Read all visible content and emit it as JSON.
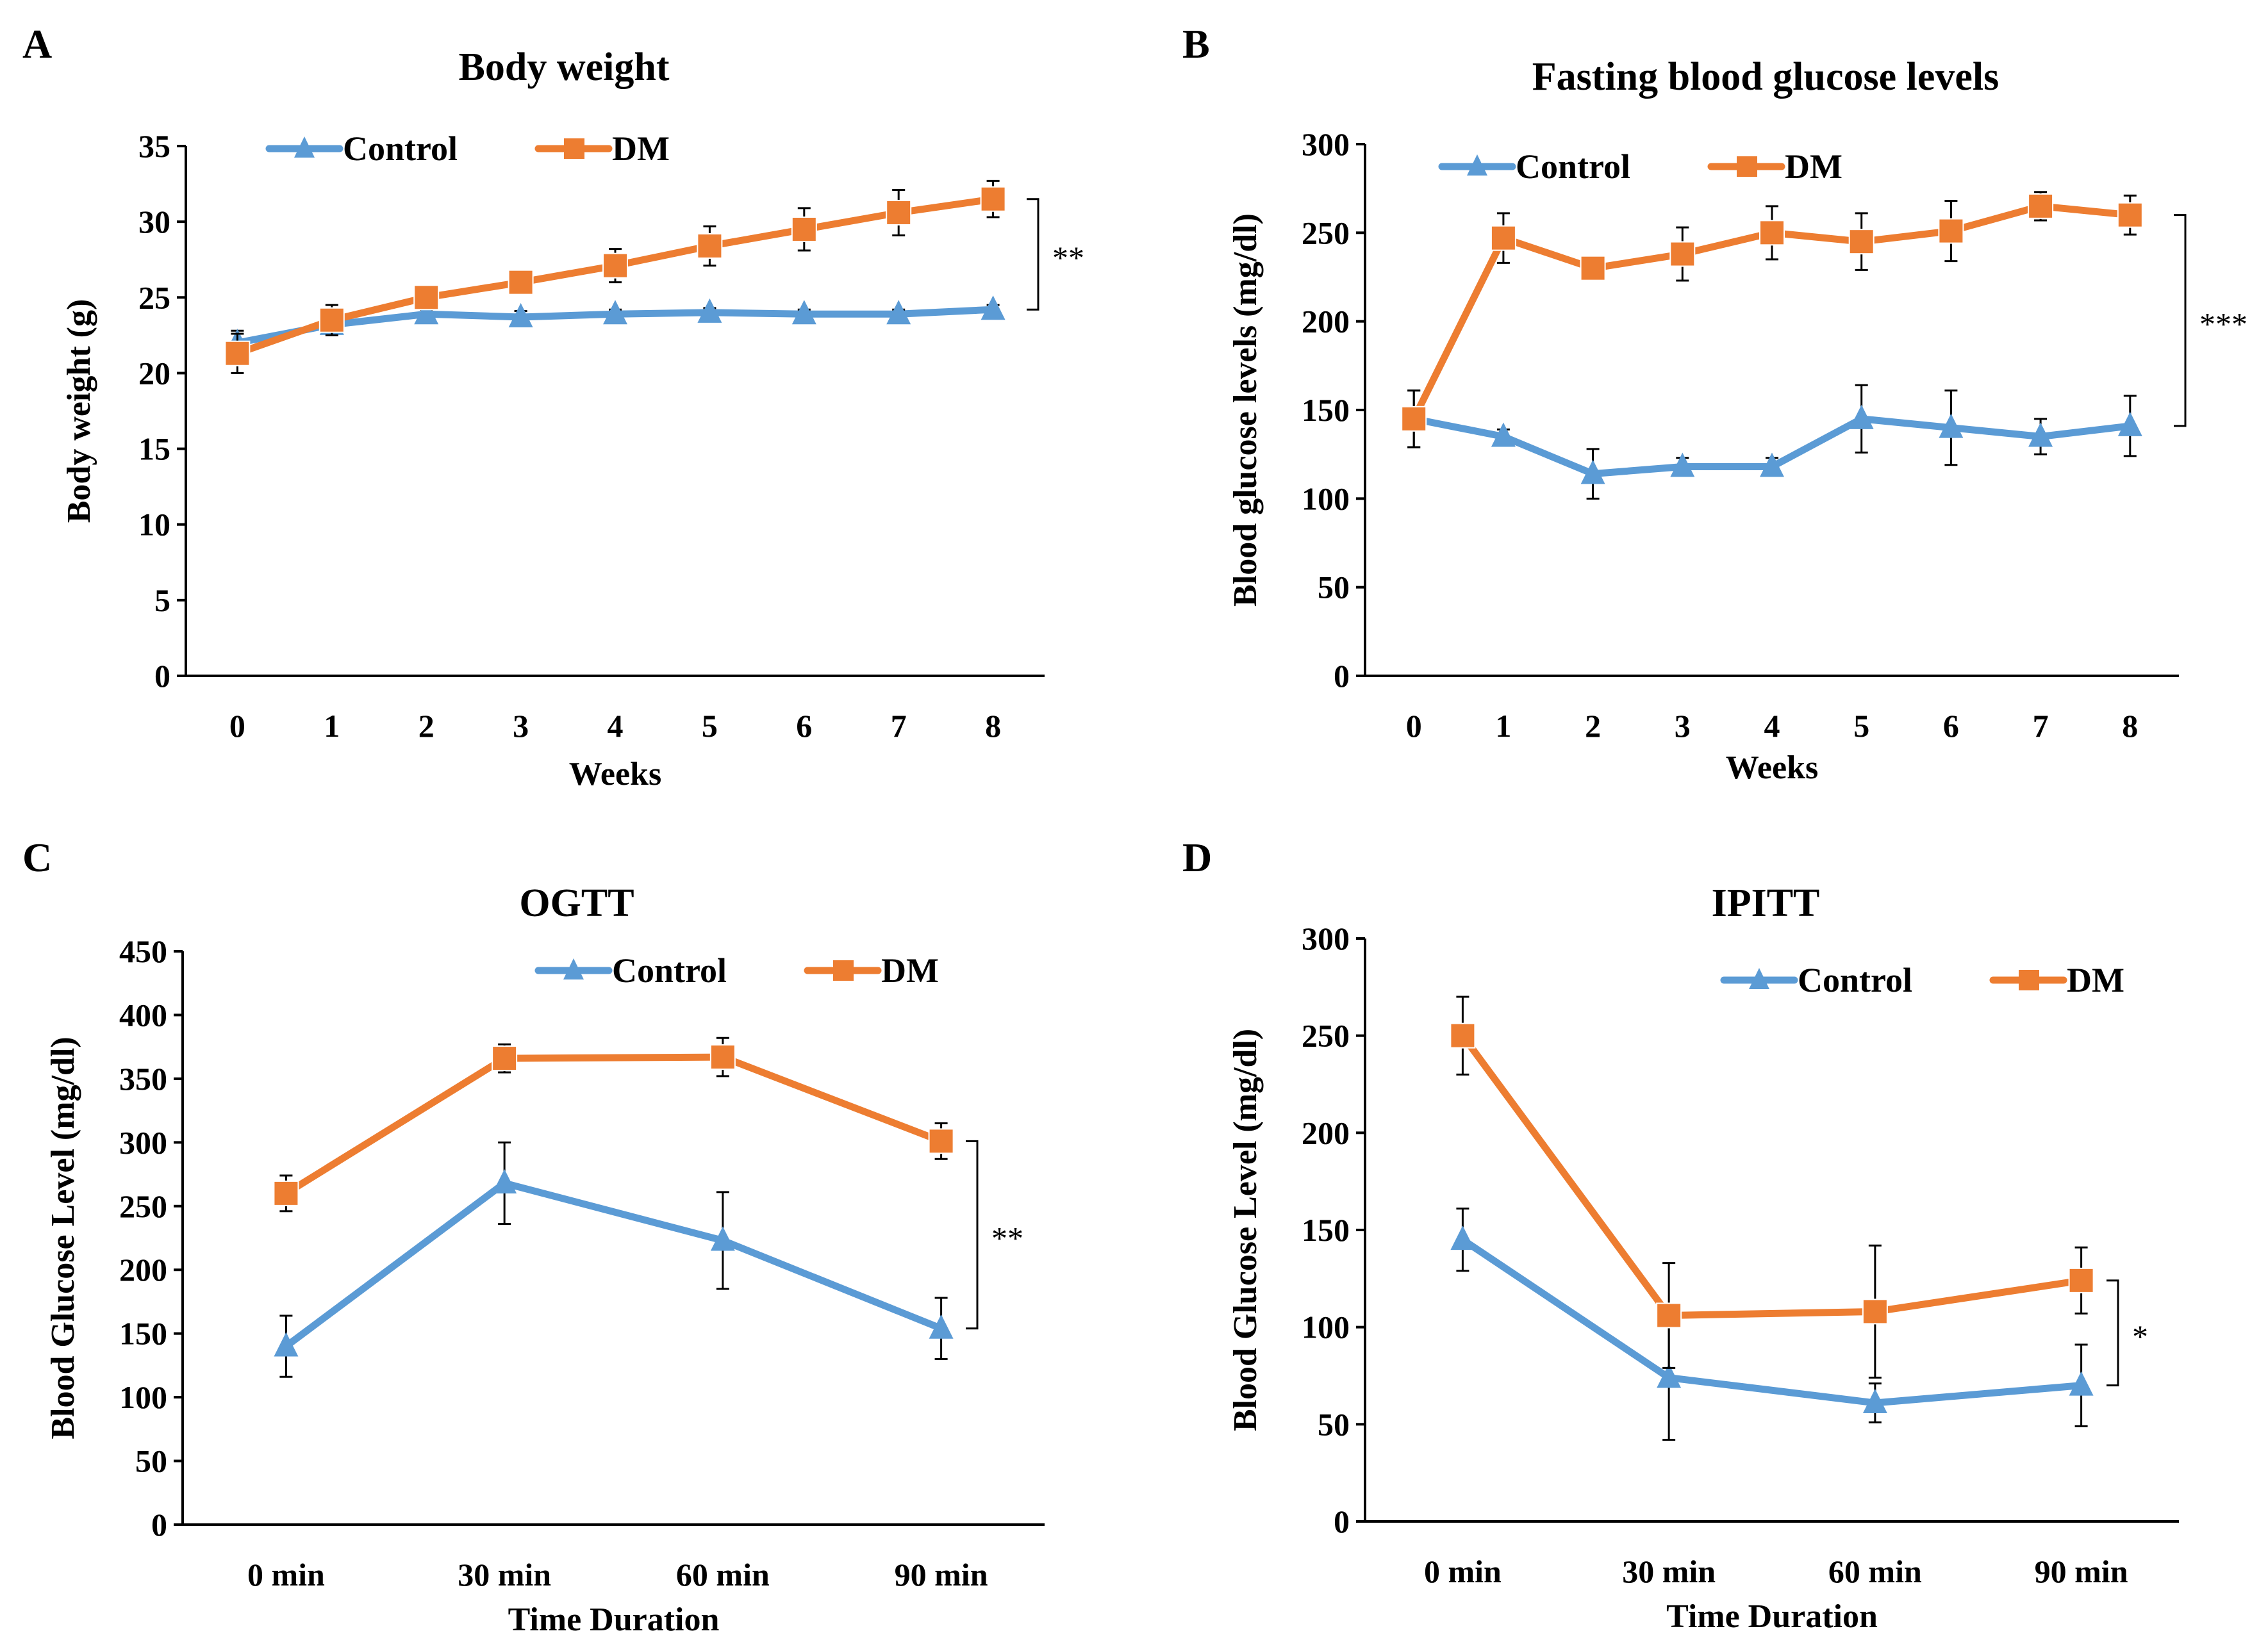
{
  "colors": {
    "control": "#5B9BD5",
    "dm": "#ED7D31",
    "axis": "#000000"
  },
  "legend": {
    "control": "Control",
    "dm": "DM"
  },
  "chart_data": [
    {
      "id": "A",
      "panel": "A",
      "type": "line",
      "title": "Body weight",
      "xlabel": "Weeks",
      "ylabel": "Body weight (g)",
      "categories": [
        "0",
        "1",
        "2",
        "3",
        "4",
        "5",
        "6",
        "7",
        "8"
      ],
      "ylim": [
        0,
        35
      ],
      "yticks": [
        0,
        5,
        10,
        15,
        20,
        25,
        30,
        35
      ],
      "legend_position": "top-left",
      "significance": "**",
      "series": [
        {
          "name": "Control",
          "marker": "triangle",
          "values": [
            22.0,
            23.2,
            23.9,
            23.7,
            23.9,
            24.0,
            23.9,
            23.9,
            24.2
          ],
          "errors": [
            0.8,
            0.6,
            0.3,
            0.4,
            0.3,
            0.3,
            0.3,
            0.3,
            0.3
          ]
        },
        {
          "name": "DM",
          "marker": "square",
          "values": [
            21.3,
            23.5,
            25.0,
            26.0,
            27.1,
            28.4,
            29.5,
            30.6,
            31.5
          ],
          "errors": [
            1.3,
            1.0,
            0.4,
            0.4,
            1.1,
            1.3,
            1.4,
            1.5,
            1.2
          ]
        }
      ]
    },
    {
      "id": "B",
      "panel": "B",
      "type": "line",
      "title": "Fasting blood glucose levels",
      "xlabel": "Weeks",
      "ylabel": "Blood glucose levels (mg/dl)",
      "categories": [
        "0",
        "1",
        "2",
        "3",
        "4",
        "5",
        "6",
        "7",
        "8"
      ],
      "ylim": [
        0,
        300
      ],
      "yticks": [
        0,
        50,
        100,
        150,
        200,
        250,
        300
      ],
      "legend_position": "top-left",
      "significance": "***",
      "series": [
        {
          "name": "Control",
          "marker": "triangle",
          "values": [
            145,
            135,
            114,
            118,
            118,
            145,
            140,
            135,
            141
          ],
          "errors": [
            16,
            4,
            14,
            5,
            5,
            19,
            21,
            10,
            17
          ]
        },
        {
          "name": "DM",
          "marker": "square",
          "values": [
            145,
            247,
            230,
            238,
            250,
            245,
            251,
            265,
            260
          ],
          "errors": [
            16,
            14,
            3,
            15,
            15,
            16,
            17,
            8,
            11
          ]
        }
      ]
    },
    {
      "id": "C",
      "panel": "C",
      "type": "line",
      "title": "OGTT",
      "xlabel": "Time Duration",
      "ylabel": "Blood Glucose Level (mg/dl)",
      "categories": [
        "0 min",
        "30 min",
        "60 min",
        "90 min"
      ],
      "ylim": [
        0,
        450
      ],
      "yticks": [
        0,
        50,
        100,
        150,
        200,
        250,
        300,
        350,
        400,
        450
      ],
      "legend_position": "top-right",
      "significance": "**",
      "series": [
        {
          "name": "Control",
          "marker": "triangle",
          "values": [
            140,
            268,
            223,
            154
          ],
          "errors": [
            24,
            32,
            38,
            24
          ]
        },
        {
          "name": "DM",
          "marker": "square",
          "values": [
            260,
            366,
            367,
            301
          ],
          "errors": [
            14,
            11,
            15,
            14
          ]
        }
      ]
    },
    {
      "id": "D",
      "panel": "D",
      "type": "line",
      "title": "IPITT",
      "xlabel": "Time Duration",
      "ylabel": "Blood Glucose Level (mg/dl)",
      "categories": [
        "0 min",
        "30 min",
        "60 min",
        "90 min"
      ],
      "ylim": [
        0,
        300
      ],
      "yticks": [
        0,
        50,
        100,
        150,
        200,
        250,
        300
      ],
      "legend_position": "top-right",
      "significance": "*",
      "series": [
        {
          "name": "Control",
          "marker": "triangle",
          "values": [
            145,
            74,
            61,
            70
          ],
          "errors": [
            16,
            32,
            10,
            21
          ]
        },
        {
          "name": "DM",
          "marker": "square",
          "values": [
            250,
            106,
            108,
            124
          ],
          "errors": [
            20,
            27,
            34,
            17
          ]
        }
      ]
    }
  ]
}
